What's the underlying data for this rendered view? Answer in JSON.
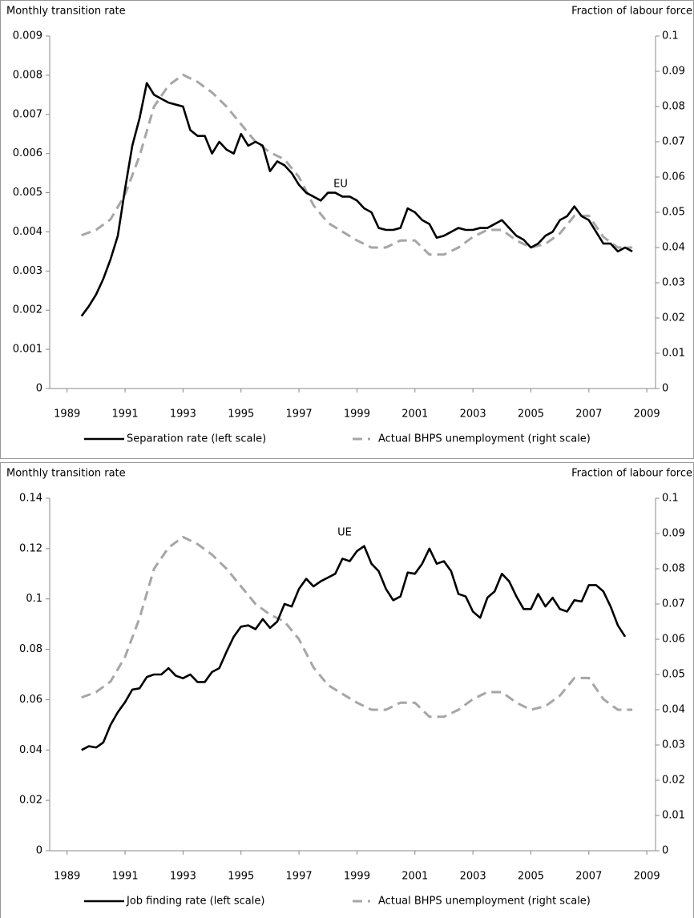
{
  "chart_data": [
    {
      "type": "line",
      "ylabel": "Monthly transition rate",
      "y2label": "Fraction of labour force",
      "annotation": "EU",
      "xlim": [
        1988.4,
        2009.3
      ],
      "xticks": [
        1989,
        1991,
        1993,
        1995,
        1997,
        1999,
        2001,
        2003,
        2005,
        2007,
        2009
      ],
      "ylim": [
        0,
        0.009
      ],
      "yticks": [
        0,
        0.001,
        0.002,
        0.003,
        0.004,
        0.005,
        0.006,
        0.007,
        0.008,
        0.009
      ],
      "y2lim": [
        0,
        0.1
      ],
      "y2ticks": [
        0,
        0.01,
        0.02,
        0.03,
        0.04,
        0.05,
        0.06,
        0.07,
        0.08,
        0.09,
        0.1
      ],
      "series": [
        {
          "name": "Separation rate (left scale)",
          "color": "#000000",
          "dashed": false,
          "x": [
            1989.5,
            1989.75,
            1990,
            1990.25,
            1990.5,
            1990.75,
            1991,
            1991.25,
            1991.5,
            1991.75,
            1992,
            1992.25,
            1992.5,
            1992.75,
            1993,
            1993.25,
            1993.5,
            1993.75,
            1994,
            1994.25,
            1994.5,
            1994.75,
            1995,
            1995.25,
            1995.5,
            1995.75,
            1996,
            1996.25,
            1996.5,
            1996.75,
            1997,
            1997.25,
            1997.5,
            1997.75,
            1998,
            1998.25,
            1998.5,
            1998.75,
            1999,
            1999.25,
            1999.5,
            1999.75,
            2000,
            2000.25,
            2000.5,
            2000.75,
            2001,
            2001.25,
            2001.5,
            2001.75,
            2002,
            2002.25,
            2002.5,
            2002.75,
            2003,
            2003.25,
            2003.5,
            2003.75,
            2004,
            2004.25,
            2004.5,
            2004.75,
            2005,
            2005.25,
            2005.5,
            2005.75,
            2006,
            2006.25,
            2006.5,
            2006.75,
            2007,
            2007.25,
            2007.5,
            2007.75,
            2008,
            2008.25,
            2008.5
          ],
          "values": [
            0.00185,
            0.0021,
            0.0024,
            0.0028,
            0.0033,
            0.0039,
            0.0051,
            0.0062,
            0.0069,
            0.0078,
            0.0075,
            0.0074,
            0.0073,
            0.00725,
            0.0072,
            0.0066,
            0.00645,
            0.00645,
            0.006,
            0.0063,
            0.0061,
            0.006,
            0.0065,
            0.0062,
            0.0063,
            0.0062,
            0.00555,
            0.0058,
            0.0057,
            0.0055,
            0.0052,
            0.005,
            0.0049,
            0.0048,
            0.005,
            0.005,
            0.0049,
            0.0049,
            0.0048,
            0.0046,
            0.0045,
            0.0041,
            0.00405,
            0.00405,
            0.0041,
            0.0046,
            0.0045,
            0.0043,
            0.0042,
            0.00385,
            0.0039,
            0.004,
            0.0041,
            0.00405,
            0.00405,
            0.0041,
            0.0041,
            0.0042,
            0.0043,
            0.0041,
            0.0039,
            0.0038,
            0.0036,
            0.0037,
            0.0039,
            0.004,
            0.0043,
            0.0044,
            0.00465,
            0.0044,
            0.0043,
            0.004,
            0.0037,
            0.0037,
            0.0035,
            0.0036,
            0.0035
          ]
        },
        {
          "name": "Actual BHPS unemployment (right scale)",
          "color": "#a6a6a6",
          "dashed": true,
          "axis": "y2",
          "x": [
            1989.5,
            1990,
            1990.5,
            1991,
            1991.5,
            1992,
            1992.5,
            1993,
            1993.5,
            1994,
            1994.5,
            1995,
            1995.5,
            1996,
            1996.5,
            1997,
            1997.5,
            1998,
            1998.5,
            1999,
            1999.5,
            2000,
            2000.5,
            2001,
            2001.5,
            2002,
            2002.5,
            2003,
            2003.5,
            2004,
            2004.5,
            2005,
            2005.5,
            2006,
            2006.5,
            2007,
            2007.5,
            2008,
            2008.5
          ],
          "values": [
            0.0435,
            0.045,
            0.048,
            0.055,
            0.066,
            0.08,
            0.086,
            0.089,
            0.087,
            0.084,
            0.08,
            0.075,
            0.07,
            0.067,
            0.065,
            0.06,
            0.052,
            0.047,
            0.0445,
            0.042,
            0.04,
            0.04,
            0.042,
            0.042,
            0.038,
            0.038,
            0.04,
            0.043,
            0.045,
            0.045,
            0.042,
            0.04,
            0.041,
            0.044,
            0.049,
            0.049,
            0.043,
            0.04,
            0.04
          ]
        }
      ]
    },
    {
      "type": "line",
      "ylabel": "Monthly transition rate",
      "y2label": "Fraction of labour force",
      "annotation": "UE",
      "xlim": [
        1988.4,
        2009.3
      ],
      "xticks": [
        1989,
        1991,
        1993,
        1995,
        1997,
        1999,
        2001,
        2003,
        2005,
        2007,
        2009
      ],
      "ylim": [
        0,
        0.14
      ],
      "yticks": [
        0,
        0.02,
        0.04,
        0.06,
        0.08,
        0.1,
        0.12,
        0.14
      ],
      "y2lim": [
        0,
        0.1
      ],
      "y2ticks": [
        0,
        0.01,
        0.02,
        0.03,
        0.04,
        0.05,
        0.06,
        0.07,
        0.08,
        0.09,
        0.1
      ],
      "series": [
        {
          "name": "Job finding rate (left scale)",
          "color": "#000000",
          "dashed": false,
          "x": [
            1989.5,
            1989.75,
            1990,
            1990.25,
            1990.5,
            1990.75,
            1991,
            1991.25,
            1991.5,
            1991.75,
            1992,
            1992.25,
            1992.5,
            1992.75,
            1993,
            1993.25,
            1993.5,
            1993.75,
            1994,
            1994.25,
            1994.5,
            1994.75,
            1995,
            1995.25,
            1995.5,
            1995.75,
            1996,
            1996.25,
            1996.5,
            1996.75,
            1997,
            1997.25,
            1997.5,
            1997.75,
            1998,
            1998.25,
            1998.5,
            1998.75,
            1999,
            1999.25,
            1999.5,
            1999.75,
            2000,
            2000.25,
            2000.5,
            2000.75,
            2001,
            2001.25,
            2001.5,
            2001.75,
            2002,
            2002.25,
            2002.5,
            2002.75,
            2003,
            2003.25,
            2003.5,
            2003.75,
            2004,
            2004.25,
            2004.5,
            2004.75,
            2005,
            2005.25,
            2005.5,
            2005.75,
            2006,
            2006.25,
            2006.5,
            2006.75,
            2007,
            2007.25,
            2007.5,
            2007.75,
            2008,
            2008.25
          ],
          "values": [
            0.04,
            0.0415,
            0.041,
            0.043,
            0.05,
            0.055,
            0.059,
            0.064,
            0.0645,
            0.069,
            0.07,
            0.07,
            0.0725,
            0.0695,
            0.0685,
            0.07,
            0.067,
            0.067,
            0.071,
            0.0725,
            0.079,
            0.085,
            0.089,
            0.0895,
            0.088,
            0.092,
            0.0885,
            0.091,
            0.098,
            0.097,
            0.104,
            0.108,
            0.105,
            0.107,
            0.1085,
            0.11,
            0.116,
            0.115,
            0.119,
            0.121,
            0.114,
            0.111,
            0.104,
            0.0995,
            0.101,
            0.1105,
            0.11,
            0.114,
            0.12,
            0.114,
            0.115,
            0.111,
            0.102,
            0.101,
            0.095,
            0.0925,
            0.1005,
            0.103,
            0.11,
            0.107,
            0.101,
            0.096,
            0.096,
            0.102,
            0.097,
            0.1005,
            0.096,
            0.095,
            0.0995,
            0.099,
            0.1055,
            0.1055,
            0.103,
            0.097,
            0.0895,
            0.085
          ]
        },
        {
          "name": "Actual BHPS unemployment (right scale)",
          "color": "#a6a6a6",
          "dashed": true,
          "axis": "y2",
          "x": [
            1989.5,
            1990,
            1990.5,
            1991,
            1991.5,
            1992,
            1992.5,
            1993,
            1993.5,
            1994,
            1994.5,
            1995,
            1995.5,
            1996,
            1996.5,
            1997,
            1997.5,
            1998,
            1998.5,
            1999,
            1999.5,
            2000,
            2000.5,
            2001,
            2001.5,
            2002,
            2002.5,
            2003,
            2003.5,
            2004,
            2004.5,
            2005,
            2005.5,
            2006,
            2006.5,
            2007,
            2007.5,
            2008,
            2008.5
          ],
          "values": [
            0.0435,
            0.045,
            0.048,
            0.055,
            0.066,
            0.08,
            0.086,
            0.089,
            0.087,
            0.084,
            0.08,
            0.075,
            0.07,
            0.067,
            0.065,
            0.06,
            0.052,
            0.047,
            0.0445,
            0.042,
            0.04,
            0.04,
            0.042,
            0.042,
            0.038,
            0.038,
            0.04,
            0.043,
            0.045,
            0.045,
            0.042,
            0.04,
            0.041,
            0.044,
            0.049,
            0.049,
            0.043,
            0.04,
            0.04
          ]
        }
      ]
    }
  ]
}
